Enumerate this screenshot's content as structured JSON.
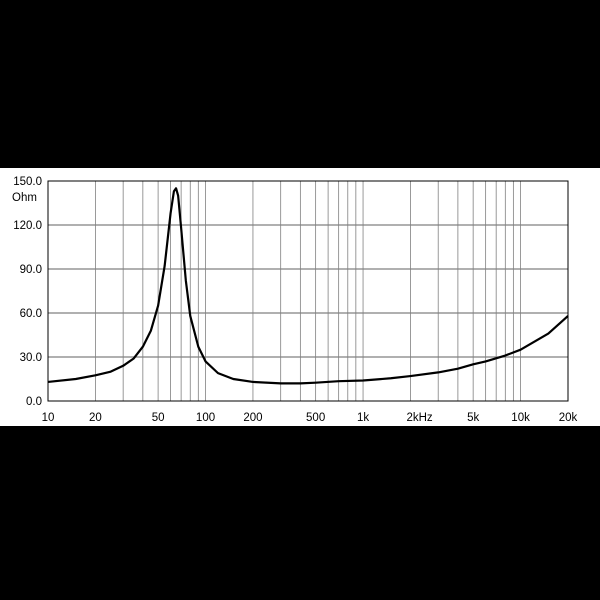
{
  "colors": {
    "background": "#000000",
    "panel": "#ffffff",
    "curve": "#000000",
    "grid": "#808080"
  },
  "chart_data": {
    "type": "line",
    "title": "",
    "xlabel": "",
    "ylabel": "Ohm",
    "x_scale": "log",
    "xlim": [
      10,
      20000
    ],
    "ylim": [
      0,
      150
    ],
    "grid": true,
    "legend": "none",
    "y_ticks": [
      {
        "value": 0,
        "label": "0.0"
      },
      {
        "value": 30,
        "label": "30.0"
      },
      {
        "value": 60,
        "label": "60.0"
      },
      {
        "value": 90,
        "label": "90.0"
      },
      {
        "value": 120,
        "label": "120.0"
      },
      {
        "value": 150,
        "label": "150.0"
      }
    ],
    "y_unit_label": "Ohm",
    "x_ticks": [
      {
        "value": 10,
        "label": "10"
      },
      {
        "value": 20,
        "label": "20"
      },
      {
        "value": 50,
        "label": "50"
      },
      {
        "value": 100,
        "label": "100"
      },
      {
        "value": 200,
        "label": "200"
      },
      {
        "value": 500,
        "label": "500"
      },
      {
        "value": 1000,
        "label": "1k"
      },
      {
        "value": 2000,
        "label": "2kHz"
      },
      {
        "value": 5000,
        "label": "5k"
      },
      {
        "value": 10000,
        "label": "10k"
      },
      {
        "value": 20000,
        "label": "20k"
      }
    ],
    "series": [
      {
        "x": [
          10,
          15,
          20,
          25,
          30,
          35,
          40,
          45,
          50,
          55,
          60,
          63,
          65,
          67,
          70,
          75,
          80,
          90,
          100,
          120,
          150,
          200,
          300,
          400,
          500,
          700,
          1000,
          1500,
          2000,
          3000,
          4000,
          5000,
          6000,
          8000,
          10000,
          15000,
          20000
        ],
        "y": [
          13,
          15,
          17.5,
          20,
          24,
          29,
          37,
          48,
          65,
          92,
          128,
          143,
          145,
          140,
          118,
          82,
          58,
          37,
          27,
          19,
          15,
          13,
          12,
          12,
          12.5,
          13.5,
          14,
          15.5,
          17,
          19.5,
          22,
          25,
          27,
          31,
          35,
          46,
          58
        ]
      }
    ]
  }
}
